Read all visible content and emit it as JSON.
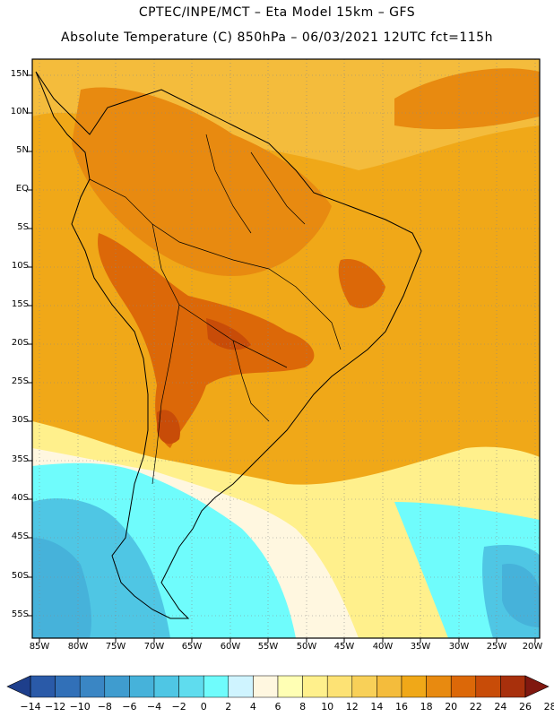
{
  "header": {
    "line1": "CPTEC/INPE/MCT –  Eta Model 15km – GFS",
    "line2": "Absolute Temperature (C) 850hPa – 06/03/2021 12UTC fct=115h"
  },
  "axes": {
    "lat_labels": [
      "15N",
      "10N",
      "5N",
      "EQ",
      "5S",
      "10S",
      "15S",
      "20S",
      "25S",
      "30S",
      "35S",
      "40S",
      "45S",
      "50S",
      "55S"
    ],
    "lon_labels": [
      "85W",
      "80W",
      "75W",
      "70W",
      "65W",
      "60W",
      "55W",
      "50W",
      "45W",
      "40W",
      "35W",
      "30W",
      "25W",
      "20W"
    ]
  },
  "colorbar": {
    "labels": [
      "-14",
      "-12",
      "-10",
      "-8",
      "-6",
      "-4",
      "-2",
      "0",
      "2",
      "4",
      "6",
      "8",
      "10",
      "12",
      "14",
      "16",
      "18",
      "20",
      "22",
      "24",
      "26",
      "28"
    ],
    "colors": [
      "#1e3f8c",
      "#2a5aa8",
      "#3170b8",
      "#3a86c4",
      "#3f9ccf",
      "#46b2da",
      "#4fc6e4",
      "#5fdcee",
      "#6ffcfc",
      "#cff4ff",
      "#fff7e0",
      "#ffffb4",
      "#fff08c",
      "#fde274",
      "#f8d058",
      "#f4bc3c",
      "#f0a818",
      "#e88a10",
      "#dc6808",
      "#c84c08",
      "#a8300c",
      "#801810"
    ]
  }
}
